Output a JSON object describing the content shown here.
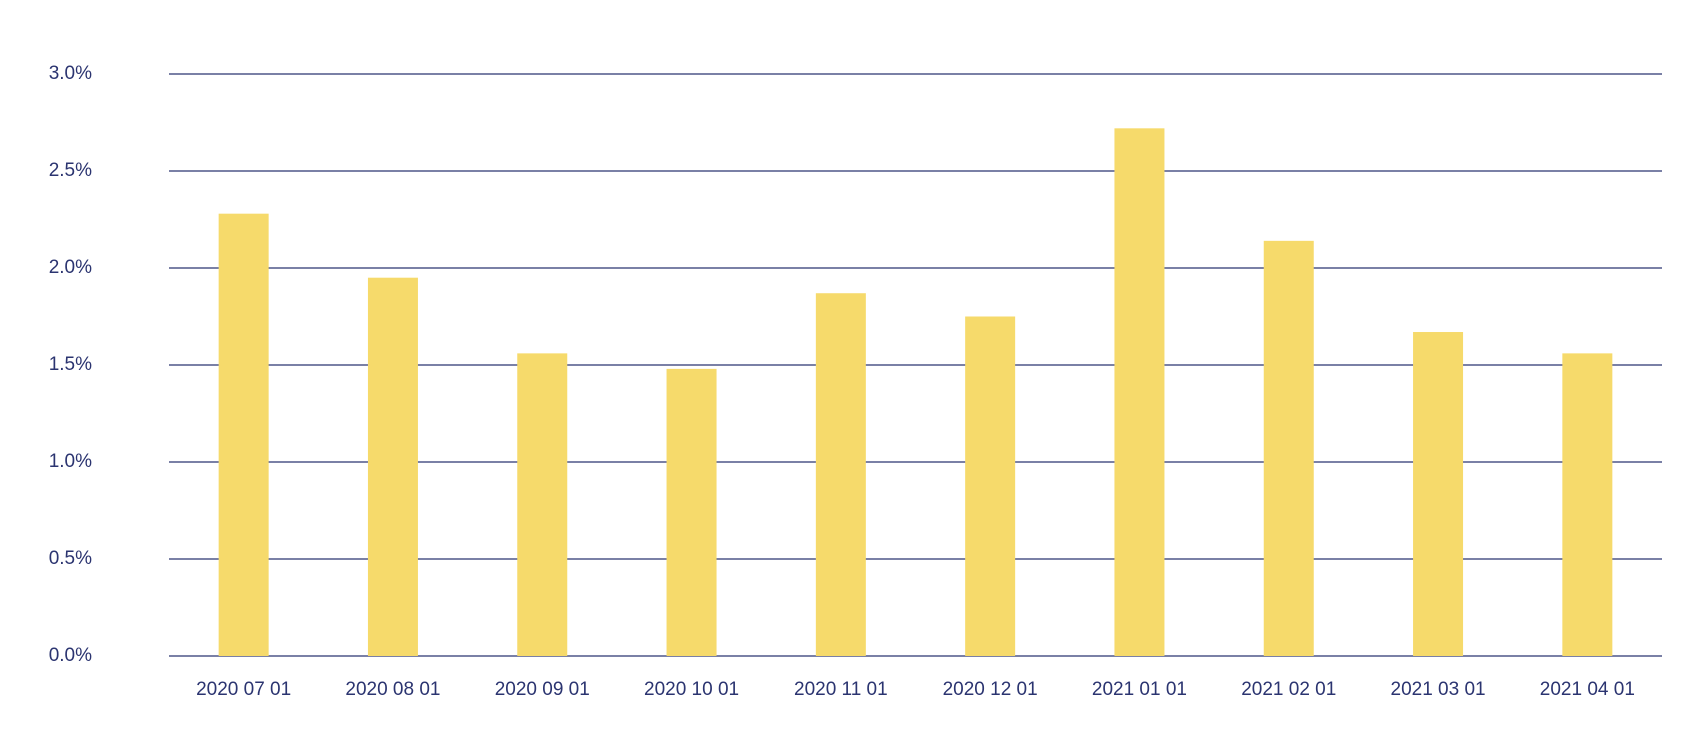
{
  "chart_data": {
    "type": "bar",
    "categories": [
      "2020 07 01",
      "2020 08 01",
      "2020 09 01",
      "2020 10 01",
      "2020 11 01",
      "2020 12 01",
      "2021 01 01",
      "2021 02 01",
      "2021 03 01",
      "2021 04 01"
    ],
    "values": [
      2.28,
      1.95,
      1.56,
      1.48,
      1.87,
      1.75,
      2.72,
      2.14,
      1.67,
      1.56
    ],
    "color": "#f6da6b",
    "ylim": [
      0,
      3
    ],
    "yticks": [
      {
        "value": 0,
        "label": "0.0%"
      },
      {
        "value": 0.5,
        "label": "0.5%"
      },
      {
        "value": 1,
        "label": "1.0%"
      },
      {
        "value": 1.5,
        "label": "1.5%"
      },
      {
        "value": 2,
        "label": "2.0%"
      },
      {
        "value": 2.5,
        "label": "2.5%"
      },
      {
        "value": 3,
        "label": "3.0%"
      }
    ],
    "grid": true
  }
}
